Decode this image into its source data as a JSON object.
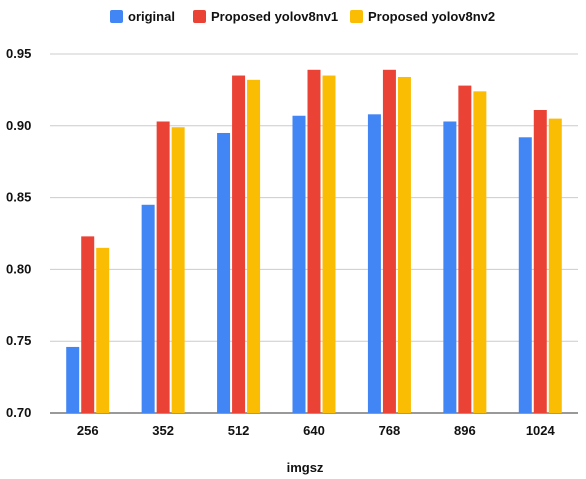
{
  "chart_data": {
    "type": "bar",
    "xlabel": "imgsz",
    "ylabel": "",
    "categories": [
      "256",
      "352",
      "512",
      "640",
      "768",
      "896",
      "1024"
    ],
    "yticks": [
      "0.70",
      "0.75",
      "0.80",
      "0.85",
      "0.90",
      "0.95"
    ],
    "ylim": [
      0.7,
      0.95
    ],
    "grid": true,
    "legend_position": "top",
    "series": [
      {
        "name": "original",
        "color": "#4285F4",
        "values": [
          0.746,
          0.845,
          0.895,
          0.907,
          0.908,
          0.903,
          0.892
        ]
      },
      {
        "name": "Proposed yolov8nv1",
        "color": "#EA4335",
        "values": [
          0.823,
          0.903,
          0.935,
          0.939,
          0.939,
          0.928,
          0.911
        ]
      },
      {
        "name": "Proposed yolov8nv2",
        "color": "#FBBC04",
        "values": [
          0.815,
          0.899,
          0.932,
          0.935,
          0.934,
          0.924,
          0.905
        ]
      }
    ]
  }
}
